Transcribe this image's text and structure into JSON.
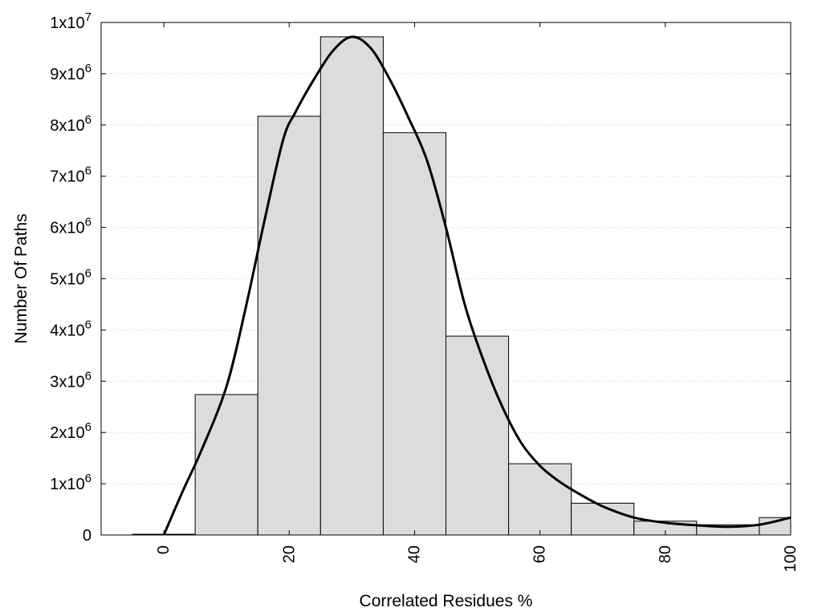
{
  "chart_data": {
    "type": "bar",
    "title": "",
    "xlabel": "Correlated Residues %",
    "ylabel": "Number Of Paths",
    "xlim": [
      -10,
      100
    ],
    "ylim": [
      0,
      10000000
    ],
    "grid": {
      "horizontal": true,
      "style": "dotted"
    },
    "bin_width": 10,
    "bins": [
      {
        "center": 0,
        "value": 15000
      },
      {
        "center": 10,
        "value": 2740000
      },
      {
        "center": 20,
        "value": 8170000
      },
      {
        "center": 30,
        "value": 9720000
      },
      {
        "center": 40,
        "value": 7850000
      },
      {
        "center": 50,
        "value": 3880000
      },
      {
        "center": 60,
        "value": 1390000
      },
      {
        "center": 70,
        "value": 620000
      },
      {
        "center": 80,
        "value": 270000
      },
      {
        "center": 90,
        "value": 200000
      },
      {
        "center": 100,
        "value": 340000
      }
    ],
    "curve": {
      "x": [
        0,
        3,
        6,
        10,
        13,
        16,
        19,
        21,
        24,
        27,
        30,
        33,
        36,
        39,
        42,
        45,
        48,
        51,
        54,
        57,
        60,
        63,
        66,
        70,
        75,
        80,
        85,
        90,
        95,
        100
      ],
      "y": [
        0,
        850000,
        1650000,
        2900000,
        4400000,
        6100000,
        7700000,
        8250000,
        8900000,
        9450000,
        9720000,
        9500000,
        8900000,
        8150000,
        7300000,
        6000000,
        4500000,
        3400000,
        2500000,
        1800000,
        1350000,
        1050000,
        820000,
        560000,
        340000,
        240000,
        190000,
        160000,
        200000,
        340000
      ]
    },
    "x_ticks": [
      "0",
      "20",
      "40",
      "60",
      "80",
      "100"
    ],
    "y_ticks": [
      {
        "value": 0,
        "mantissa": "0",
        "exponent": ""
      },
      {
        "value": 1000000,
        "mantissa": "1x10",
        "exponent": "6"
      },
      {
        "value": 2000000,
        "mantissa": "2x10",
        "exponent": "6"
      },
      {
        "value": 3000000,
        "mantissa": "3x10",
        "exponent": "6"
      },
      {
        "value": 4000000,
        "mantissa": "4x10",
        "exponent": "6"
      },
      {
        "value": 5000000,
        "mantissa": "5x10",
        "exponent": "6"
      },
      {
        "value": 6000000,
        "mantissa": "6x10",
        "exponent": "6"
      },
      {
        "value": 7000000,
        "mantissa": "7x10",
        "exponent": "6"
      },
      {
        "value": 8000000,
        "mantissa": "8x10",
        "exponent": "6"
      },
      {
        "value": 9000000,
        "mantissa": "9x10",
        "exponent": "6"
      },
      {
        "value": 10000000,
        "mantissa": "1x10",
        "exponent": "7"
      }
    ],
    "colors": {
      "bar_fill": "#dcdcdc",
      "bar_stroke": "#000000",
      "curve": "#000000",
      "grid": "#c8c8c8"
    }
  }
}
